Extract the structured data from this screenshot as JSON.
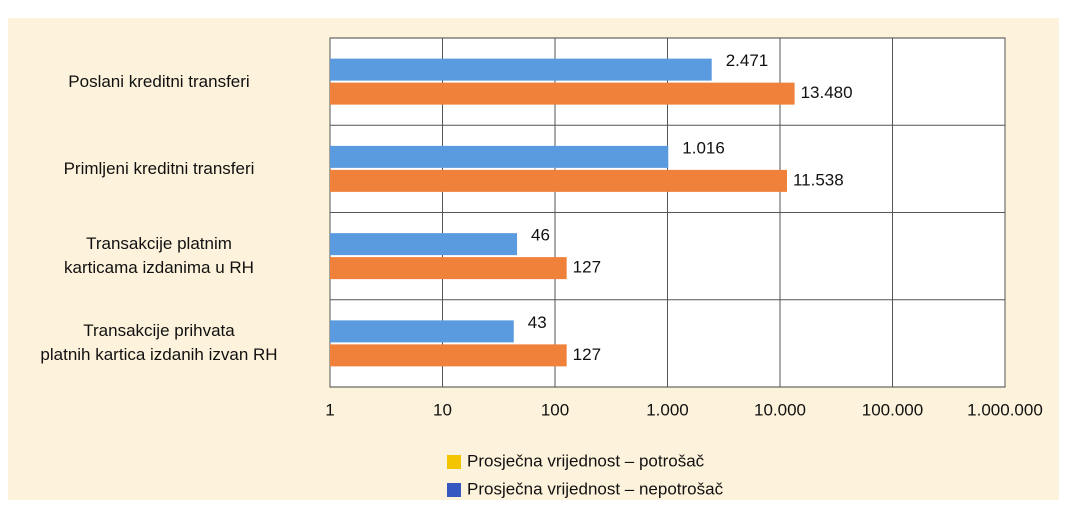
{
  "chart_data": {
    "type": "bar",
    "orientation": "horizontal",
    "categories": [
      "Poslani kreditni transferi",
      "Primljeni kreditni transferi",
      "Transakcije platnim\nkarticama izdanima u RH",
      "Transakcije prihvata\nplatnih kartica izdanih izvan RH"
    ],
    "series": [
      {
        "name": "Prosječna vrijednost – potrošač",
        "color": "#f0813a",
        "legend_color": "#f2c500",
        "values": [
          13480,
          11538,
          127,
          127
        ],
        "value_labels": [
          "13.480",
          "11.538",
          "127",
          "127"
        ]
      },
      {
        "name": "Prosječna vrijednost – nepotrošač",
        "color": "#5a9be0",
        "legend_color": "#3557c0",
        "values": [
          2471,
          1016,
          46,
          43
        ],
        "value_labels": [
          "2.471",
          "1.016",
          "46",
          "43"
        ]
      }
    ],
    "xscale": "log",
    "xlim": [
      1,
      1000000
    ],
    "xticks": [
      1,
      10,
      100,
      {
        "value": 1000,
        "label": "1.000"
      },
      {
        "value": 10000,
        "label": "10.000"
      },
      {
        "value": 100000,
        "label": "100.000"
      },
      {
        "value": 1000000,
        "label": "1.000.000"
      }
    ],
    "grid": true
  }
}
